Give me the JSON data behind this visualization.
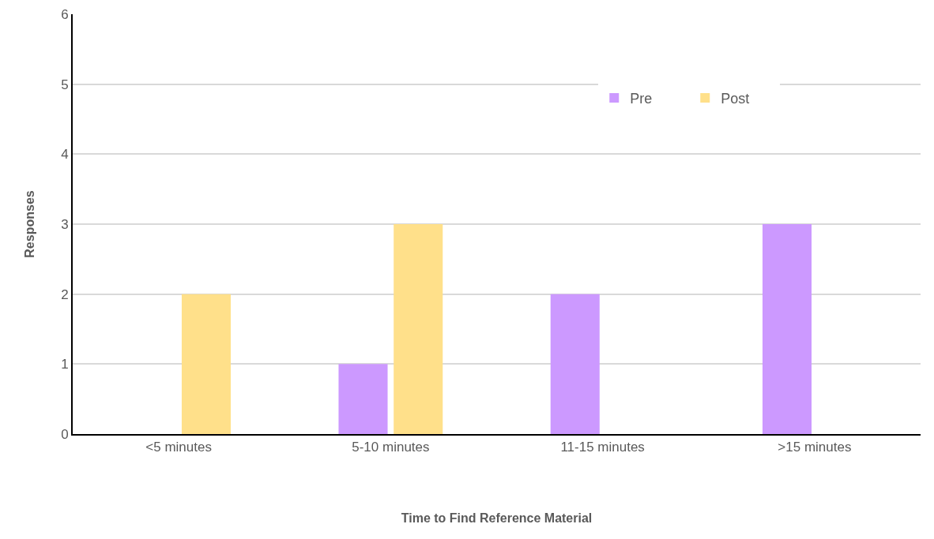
{
  "chart_data": {
    "type": "bar",
    "xlabel": "Time to Find Reference Material",
    "ylabel": "Responses",
    "categories": [
      "<5 minutes",
      "5-10 minutes",
      "11-15 minutes",
      ">15 minutes"
    ],
    "series": [
      {
        "name": "Pre",
        "color": "#cc99ff",
        "values": [
          0,
          1,
          2,
          3
        ]
      },
      {
        "name": "Post",
        "color": "#ffe08a",
        "values": [
          2,
          3,
          0,
          0
        ]
      }
    ],
    "ylim": [
      0,
      6
    ],
    "yticks": [
      0,
      1,
      2,
      3,
      4,
      5,
      6
    ],
    "grid": "y",
    "legend": "top right"
  }
}
